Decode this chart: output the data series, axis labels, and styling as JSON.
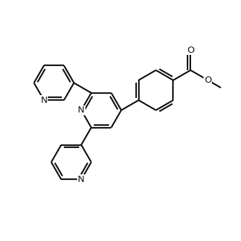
{
  "bg": "#ffffff",
  "lc": "#111111",
  "lw": 1.6,
  "dbo": 0.012,
  "fs": 9.5,
  "BL": 0.088
}
